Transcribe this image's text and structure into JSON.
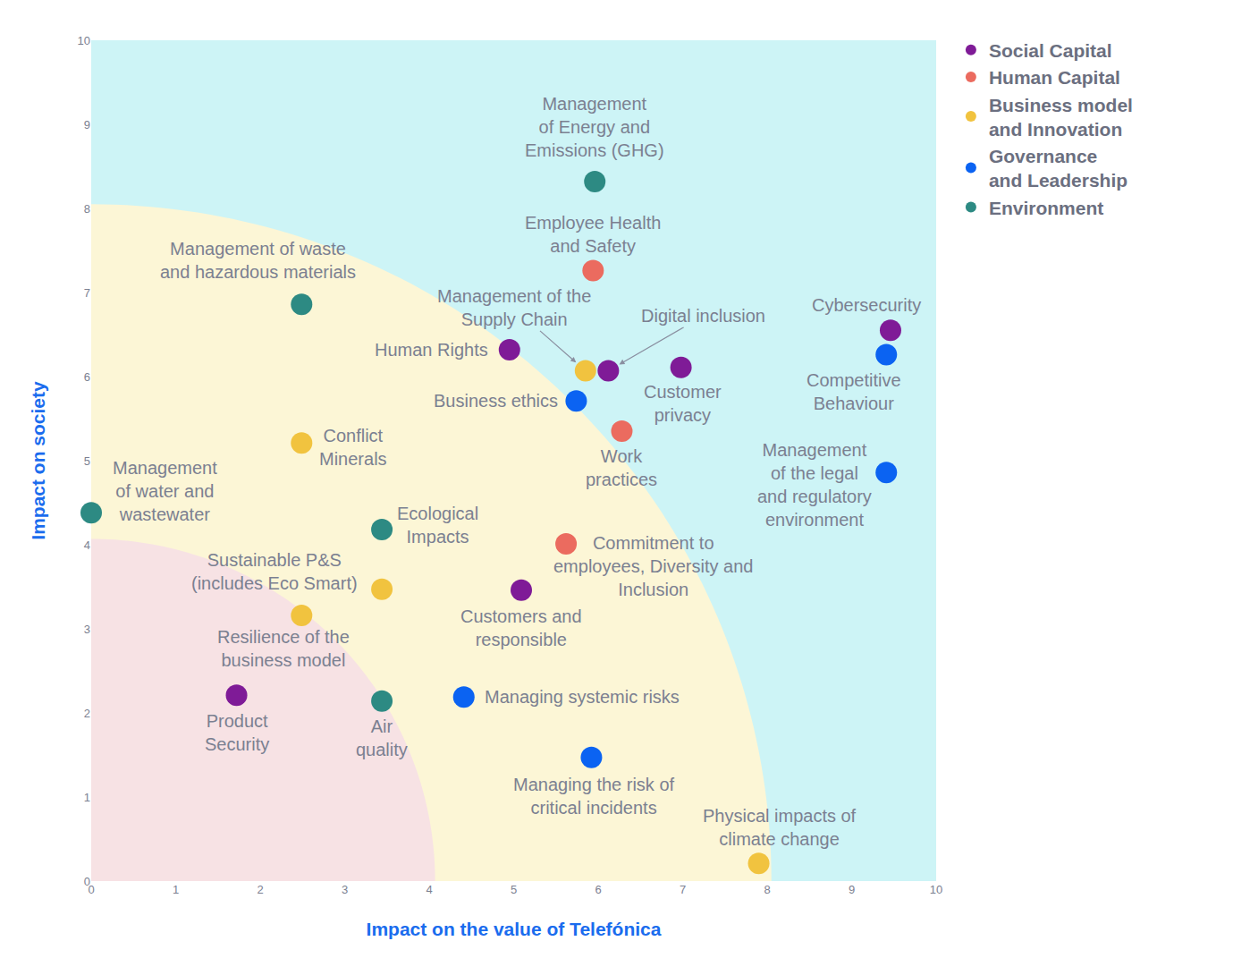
{
  "chart_data": {
    "type": "scatter",
    "xlabel": "Impact on the value of Telefónica",
    "ylabel": "Impact on society",
    "xlim": [
      0,
      10
    ],
    "ylim": [
      0,
      10
    ],
    "xticks": [
      0,
      1,
      2,
      3,
      4,
      5,
      6,
      7,
      8,
      9,
      10
    ],
    "yticks": [
      0,
      1,
      2,
      3,
      4,
      5,
      6,
      7,
      8,
      9,
      10
    ],
    "grid": false,
    "legend": "upper right",
    "zones": [
      {
        "radius": 8.05,
        "color": "#fcf6d6"
      },
      {
        "radius": 4.07,
        "color": "#f7e2e4"
      }
    ],
    "background": "#cdf4f6",
    "series": [
      {
        "name": "Social Capital",
        "color": "#7f1b97",
        "labels": [
          "Human Rights",
          "Digital inclusion",
          "Customer\nprivacy",
          "Cybersecurity",
          "Customers and\nresponsible",
          "Product\nSecurity"
        ],
        "x": [
          4.95,
          6.12,
          6.98,
          9.46,
          5.09,
          1.72
        ],
        "y": [
          6.32,
          6.07,
          6.11,
          6.55,
          3.46,
          2.21
        ]
      },
      {
        "name": "Human Capital",
        "color": "#eb6b5f",
        "labels": [
          "Employee Health\nand Safety",
          "Work\npractices",
          "Commitment to\nemployees, Diversity and\nInclusion"
        ],
        "x": [
          5.94,
          6.28,
          5.62
        ],
        "y": [
          7.26,
          5.35,
          4.01
        ]
      },
      {
        "name": "Business model\nand Innovation",
        "color": "#f1c33f",
        "labels": [
          "Management of the\nSupply Chain",
          "Conflict\nMinerals",
          "Sustainable P&S\n(includes Eco Smart)",
          "Resilience of the\nbusiness model",
          "Physical impacts of\nclimate change"
        ],
        "x": [
          5.85,
          2.49,
          3.44,
          2.49,
          7.9
        ],
        "y": [
          6.07,
          5.21,
          3.47,
          3.16,
          0.21
        ]
      },
      {
        "name": "Governance\nand Leadership",
        "color": "#0b63f2",
        "labels": [
          "Competitive\nBehaviour",
          "Business ethics",
          "Management\nof the legal\nand regulatory\nenvironment",
          "Managing systemic risks",
          "Managing the risk of\ncritical incidents"
        ],
        "x": [
          9.41,
          5.74,
          9.41,
          4.41,
          5.92
        ],
        "y": [
          6.26,
          5.71,
          4.86,
          2.19,
          1.47
        ]
      },
      {
        "name": "Environment",
        "color": "#2d8a83",
        "labels": [
          "Management\nof Energy and\nEmissions (GHG)",
          "Management of waste\nand hazardous materials",
          "Management\nof water and\nwastewater",
          "Ecological\nImpacts",
          "Air\nquality"
        ],
        "x": [
          5.96,
          2.49,
          0,
          3.44,
          3.44
        ],
        "y": [
          8.32,
          6.86,
          4.38,
          4.18,
          2.14
        ]
      }
    ]
  }
}
